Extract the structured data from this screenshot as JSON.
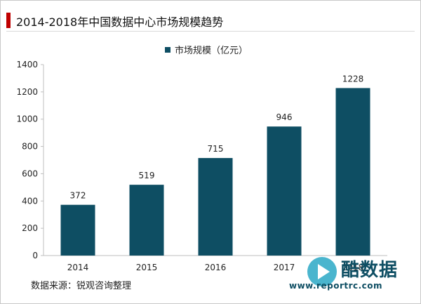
{
  "header": {
    "title": "2014-2018年中国数据中心市场规模趋势"
  },
  "legend": {
    "label": "市场规模（亿元）"
  },
  "source": {
    "text": "数据来源：锐观咨询整理"
  },
  "watermark": {
    "brand": "酷数据",
    "url": "www.reportrc.com"
  },
  "colors": {
    "bar": "#0e4e63",
    "title_accent": "#c00000",
    "axis": "#bfbfbf"
  },
  "chart_data": {
    "type": "bar",
    "categories": [
      "2014",
      "2015",
      "2016",
      "2017",
      "2018"
    ],
    "series": [
      {
        "name": "市场规模（亿元）",
        "values": [
          372,
          519,
          715,
          946,
          1228
        ]
      }
    ],
    "title": "2014-2018年中国数据中心市场规模趋势",
    "xlabel": "",
    "ylabel": "",
    "ylim": [
      0,
      1400
    ],
    "yticks": [
      0,
      200,
      400,
      600,
      800,
      1000,
      1200,
      1400
    ],
    "data_labels": [
      "372",
      "519",
      "715",
      "946",
      "1228"
    ],
    "grid": false,
    "legend_position": "top"
  }
}
